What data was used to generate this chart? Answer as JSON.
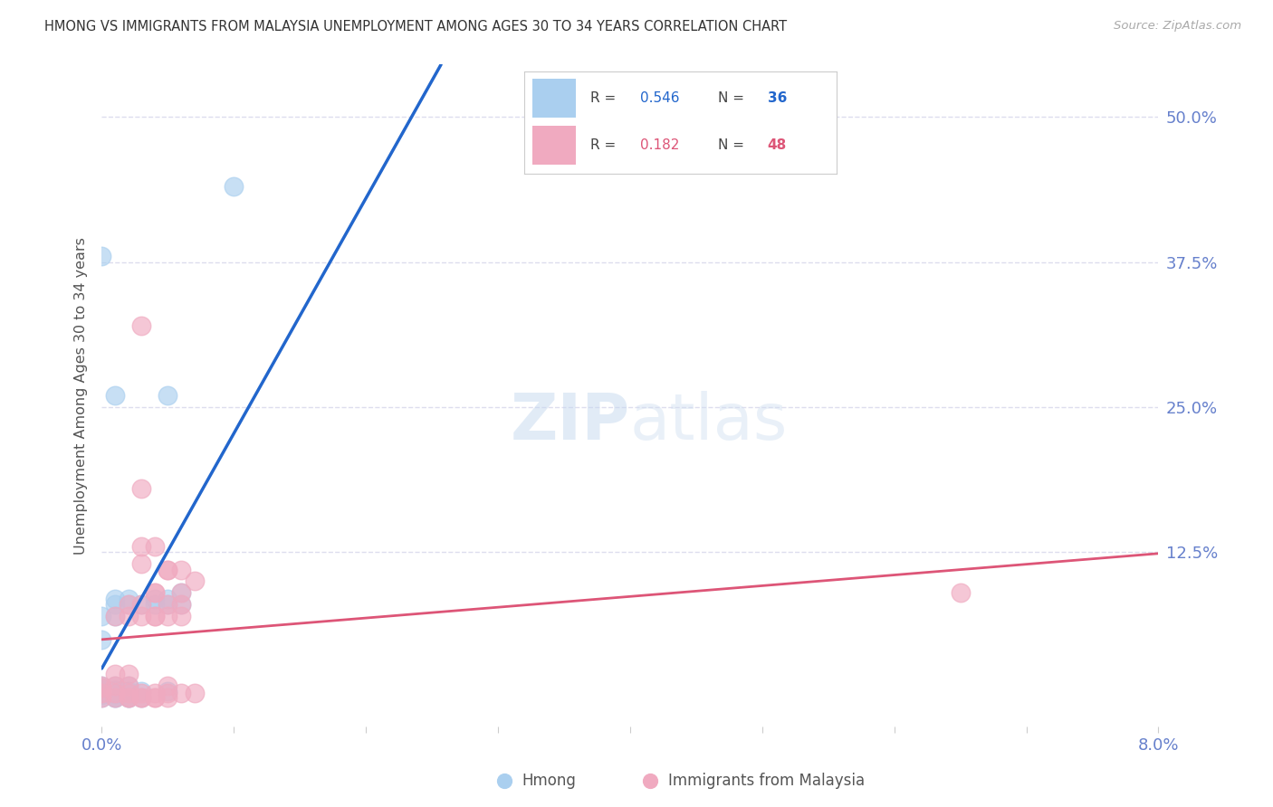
{
  "title": "HMONG VS IMMIGRANTS FROM MALAYSIA UNEMPLOYMENT AMONG AGES 30 TO 34 YEARS CORRELATION CHART",
  "source": "Source: ZipAtlas.com",
  "ylabel": "Unemployment Among Ages 30 to 34 years",
  "watermark_zip": "ZIP",
  "watermark_atlas": "atlas",
  "ytick_labels": [
    "50.0%",
    "37.5%",
    "25.0%",
    "12.5%"
  ],
  "ytick_values": [
    0.5,
    0.375,
    0.25,
    0.125
  ],
  "xlim": [
    0.0,
    0.08
  ],
  "ylim": [
    -0.025,
    0.545
  ],
  "hmong_scatter_color": "#aacfef",
  "malaysia_scatter_color": "#f0aac0",
  "hmong_line_color": "#2266cc",
  "malaysia_line_color": "#dd5577",
  "dash_color": "#aabbdd",
  "grid_color": "#ddddee",
  "title_color": "#333333",
  "axis_label_color": "#6680cc",
  "ylabel_color": "#555555",
  "background_color": "#ffffff",
  "legend_R1": "0.546",
  "legend_N1": "36",
  "legend_R2": "0.182",
  "legend_N2": "48",
  "legend_label1": "Hmong",
  "legend_label2": "Immigrants from Malaysia",
  "hmong_x": [
    0.0,
    0.0,
    0.0,
    0.0,
    0.0,
    0.0,
    0.0,
    0.0,
    0.001,
    0.001,
    0.001,
    0.001,
    0.001,
    0.001,
    0.001,
    0.002,
    0.002,
    0.002,
    0.002,
    0.003,
    0.003,
    0.003,
    0.004,
    0.004,
    0.005,
    0.005,
    0.005,
    0.006,
    0.006,
    0.0,
    0.001,
    0.002,
    0.005,
    0.01,
    0.001,
    0.002
  ],
  "hmong_y": [
    0.0,
    0.002,
    0.004,
    0.006,
    0.008,
    0.01,
    0.05,
    0.07,
    0.0,
    0.003,
    0.006,
    0.01,
    0.07,
    0.08,
    0.085,
    0.0,
    0.005,
    0.01,
    0.08,
    0.0,
    0.005,
    0.08,
    0.08,
    0.085,
    0.005,
    0.08,
    0.085,
    0.08,
    0.09,
    0.38,
    0.26,
    0.085,
    0.26,
    0.44,
    0.0,
    0.0
  ],
  "mal_x": [
    0.0,
    0.0,
    0.0,
    0.0,
    0.001,
    0.001,
    0.001,
    0.001,
    0.001,
    0.002,
    0.002,
    0.002,
    0.002,
    0.002,
    0.003,
    0.003,
    0.003,
    0.003,
    0.003,
    0.004,
    0.004,
    0.004,
    0.004,
    0.004,
    0.005,
    0.005,
    0.005,
    0.005,
    0.006,
    0.006,
    0.006,
    0.007,
    0.007,
    0.003,
    0.004,
    0.005,
    0.006,
    0.002,
    0.003,
    0.004,
    0.005,
    0.006,
    0.002,
    0.003,
    0.004,
    0.005,
    0.065,
    0.003
  ],
  "mal_y": [
    0.0,
    0.004,
    0.008,
    0.01,
    0.0,
    0.004,
    0.01,
    0.02,
    0.07,
    0.0,
    0.004,
    0.01,
    0.02,
    0.07,
    0.0,
    0.004,
    0.07,
    0.115,
    0.13,
    0.0,
    0.004,
    0.07,
    0.09,
    0.13,
    0.004,
    0.01,
    0.08,
    0.11,
    0.004,
    0.08,
    0.09,
    0.004,
    0.1,
    0.18,
    0.09,
    0.11,
    0.11,
    0.08,
    0.08,
    0.07,
    0.07,
    0.07,
    0.0,
    0.0,
    0.0,
    0.0,
    0.09,
    0.32
  ]
}
